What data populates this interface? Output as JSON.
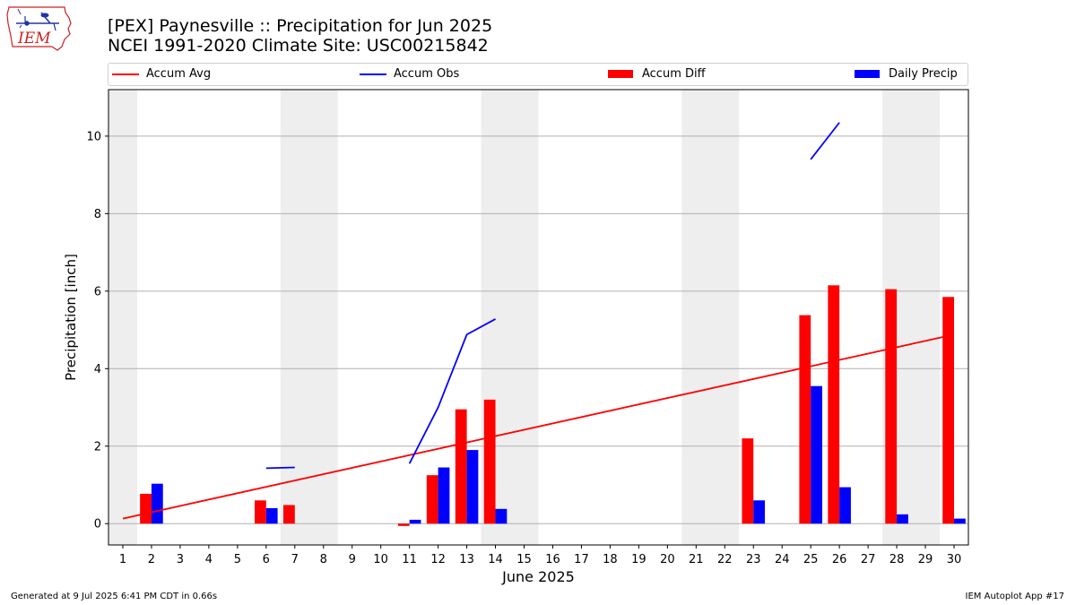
{
  "logo": {
    "text": "IEM",
    "icon": "iem-iowa-logo"
  },
  "chart_data": {
    "type": "bar",
    "title": "[PEX] Paynesville :: Precipitation for Jun 2025",
    "subtitle": "NCEI 1991-2020 Climate Site: USC00215842",
    "xlabel": "June 2025",
    "ylabel": "Precipitation [inch]",
    "xlim": [
      0.5,
      30.5
    ],
    "ylim": [
      -0.55,
      11.2
    ],
    "yticks": [
      0,
      2,
      4,
      6,
      8,
      10
    ],
    "xticks": [
      "1",
      "2",
      "3",
      "4",
      "5",
      "6",
      "7",
      "8",
      "9",
      "10",
      "11",
      "12",
      "13",
      "14",
      "15",
      "16",
      "17",
      "18",
      "19",
      "20",
      "21",
      "22",
      "23",
      "24",
      "25",
      "26",
      "27",
      "28",
      "29",
      "30"
    ],
    "grid": "horizontal",
    "legend": "top",
    "weekend_shading": [
      [
        0.5,
        1.5
      ],
      [
        6.5,
        8.5
      ],
      [
        13.5,
        15.5
      ],
      [
        20.5,
        22.5
      ],
      [
        27.5,
        29.5
      ]
    ],
    "series": [
      {
        "name": "Accum Avg",
        "kind": "line",
        "color": "#ff0000",
        "x": [
          1,
          30
        ],
        "y": [
          0.13,
          4.88
        ]
      },
      {
        "name": "Accum Obs",
        "kind": "line",
        "color": "#0000ff",
        "segments": [
          {
            "x": [
              6,
              7
            ],
            "y": [
              1.43,
              1.45
            ]
          },
          {
            "x": [
              11,
              12,
              13,
              14
            ],
            "y": [
              1.55,
              3.0,
              4.88,
              5.28
            ]
          },
          {
            "x": [
              25,
              26
            ],
            "y": [
              9.4,
              10.35
            ]
          }
        ]
      },
      {
        "name": "Accum Diff",
        "kind": "bar",
        "color": "#ff0000",
        "offset": -0.2,
        "x": [
          2,
          6,
          7,
          11,
          12,
          13,
          14,
          23,
          25,
          26,
          28,
          30
        ],
        "values": [
          0.77,
          0.6,
          0.48,
          -0.06,
          1.25,
          2.95,
          3.2,
          2.2,
          5.38,
          6.15,
          6.05,
          5.85
        ]
      },
      {
        "name": "Daily Precip",
        "kind": "bar",
        "color": "#0000ff",
        "offset": 0.2,
        "x": [
          2,
          6,
          11,
          12,
          13,
          14,
          23,
          25,
          26,
          28,
          30
        ],
        "values": [
          1.03,
          0.4,
          0.1,
          1.45,
          1.9,
          0.38,
          0.6,
          3.55,
          0.94,
          0.24,
          0.13
        ]
      }
    ]
  },
  "footer": {
    "left": "Generated at 9 Jul 2025 6:41 PM CDT in 0.66s",
    "right": "IEM Autoplot App #17"
  }
}
